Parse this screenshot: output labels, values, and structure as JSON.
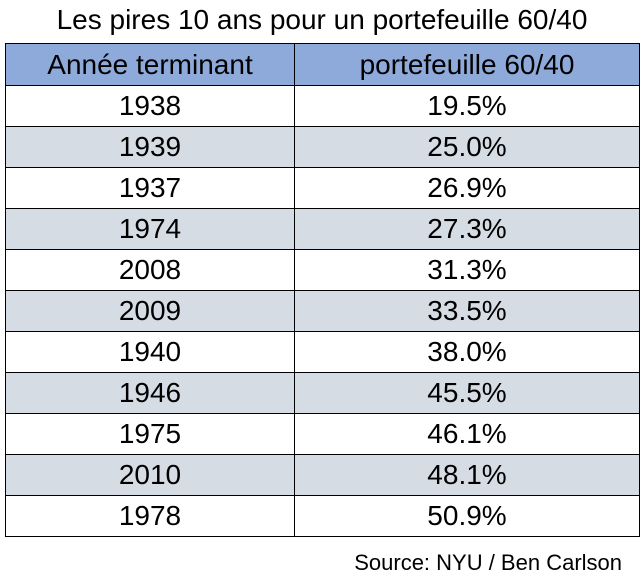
{
  "chart_data": {
    "type": "table",
    "title": "Les pires 10 ans pour un portefeuille 60/40",
    "columns": [
      "Année terminant",
      "portefeuille 60/40"
    ],
    "rows": [
      [
        "1938",
        "19.5%"
      ],
      [
        "1939",
        "25.0%"
      ],
      [
        "1937",
        "26.9%"
      ],
      [
        "1974",
        "27.3%"
      ],
      [
        "2008",
        "31.3%"
      ],
      [
        "2009",
        "33.5%"
      ],
      [
        "1940",
        "38.0%"
      ],
      [
        "1946",
        "45.5%"
      ],
      [
        "1975",
        "46.1%"
      ],
      [
        "2010",
        "48.1%"
      ],
      [
        "1978",
        "50.9%"
      ]
    ],
    "source": "Source: NYU / Ben Carlson"
  },
  "colors": {
    "header_fill": "#8eaadb",
    "band_fill": "#d6dce4",
    "row_fill": "#ffffff",
    "border": "#000000"
  }
}
